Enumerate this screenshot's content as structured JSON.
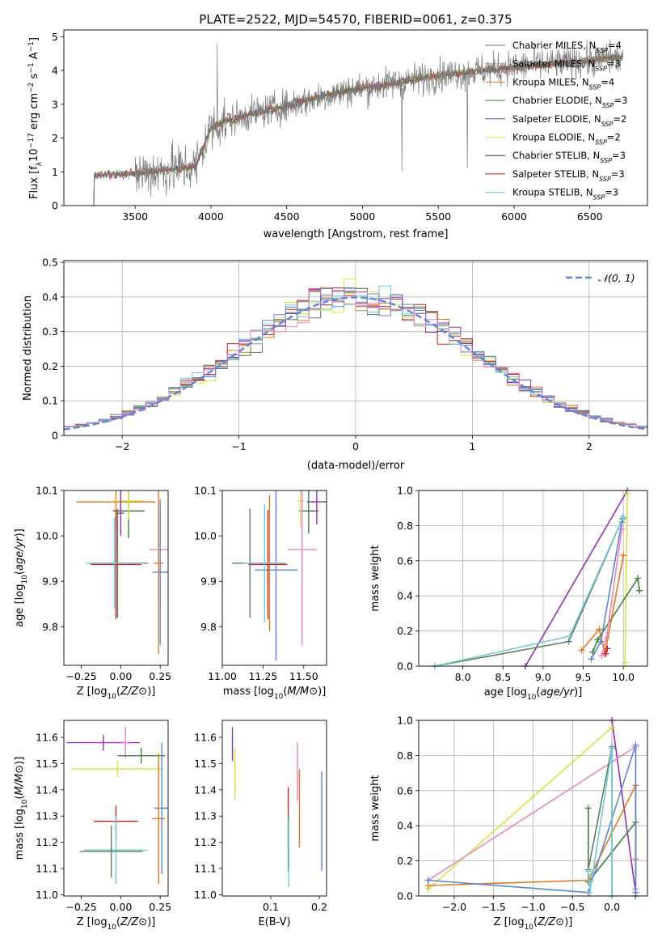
{
  "title": "PLATE=2522, MJD=54570, FIBERID=0061, z=0.375",
  "colors": {
    "Chabrier MILES": "#5f7f5f",
    "Salpeter MILES": "#a0a0a0",
    "Kroupa MILES": "#e07820",
    "Chabrier ELODIE": "#3e7f3e",
    "Salpeter ELODIE": "#9030b0",
    "Kroupa ELODIE": "#d8e040",
    "Chabrier STELIB": "#303030",
    "Salpeter STELIB": "#c02020",
    "Kroupa STELIB": "#70c8d8",
    "extra_blue": "#5b86d6",
    "extra_pink": "#e884c0",
    "normal": "#5b86d6"
  },
  "chart_data": [
    {
      "id": "spectrum",
      "type": "line",
      "title": "PLATE=2522, MJD=54570, FIBERID=0061, z=0.375",
      "xlabel": "wavelength [Angstrom, rest frame]",
      "ylabel_parts": [
        "Flux [f",
        "λ",
        "10",
        "−17",
        " erg cm",
        "−2",
        " s",
        "−1",
        " A",
        "−1",
        "]"
      ],
      "xlim": [
        3030,
        6880
      ],
      "ylim": [
        0,
        5.2
      ],
      "xticks": [
        3500,
        4000,
        4500,
        5000,
        5500,
        6000,
        6500
      ],
      "yticks": [
        0,
        1,
        2,
        3,
        4,
        5
      ],
      "x_range": [
        3220,
        6720
      ],
      "continuum": {
        "x": [
          3220,
          3500,
          3900,
          4000,
          4100,
          4300,
          4500,
          4700,
          4900,
          5100,
          5300,
          5500,
          5700,
          5900,
          6100,
          6300,
          6500,
          6720
        ],
        "y": [
          0.9,
          0.95,
          1.15,
          2.3,
          2.5,
          2.75,
          2.95,
          3.2,
          3.4,
          3.55,
          3.7,
          3.85,
          3.95,
          4.05,
          4.15,
          4.2,
          4.3,
          4.4
        ]
      },
      "legend": [
        {
          "name": "Chabrier MILES, N",
          "sub": "SSP",
          "tail": "=4"
        },
        {
          "name": "Salpeter MILES, N",
          "sub": "SSP",
          "tail": "=3"
        },
        {
          "name": "Kroupa MILES, N",
          "sub": "SSP",
          "tail": "=4"
        },
        {
          "name": "Chabrier ELODIE, N",
          "sub": "SSP",
          "tail": "=3"
        },
        {
          "name": "Salpeter ELODIE, N",
          "sub": "SSP",
          "tail": "=2"
        },
        {
          "name": "Kroupa ELODIE, N",
          "sub": "SSP",
          "tail": "=2"
        },
        {
          "name": "Chabrier STELIB, N",
          "sub": "SSP",
          "tail": "=3"
        },
        {
          "name": "Salpeter STELIB, N",
          "sub": "SSP",
          "tail": "=3"
        },
        {
          "name": "Kroupa STELIB, N",
          "sub": "SSP",
          "tail": "=3"
        }
      ],
      "legend_colors": [
        "#5f7f5f",
        "#a0a0a0",
        "#e07820",
        "#3e7f3e",
        "#9030b0",
        "#d8e040",
        "#303030",
        "#c02020",
        "#70c8d8"
      ],
      "legend_placement": "right",
      "grid": false
    },
    {
      "id": "residuals",
      "type": "line",
      "xlabel": "(data-model)/error",
      "ylabel": "Normed distribution",
      "xlim": [
        -2.5,
        2.5
      ],
      "ylim": [
        0,
        0.505
      ],
      "xticks": [
        -2,
        -1,
        0,
        1,
        2
      ],
      "yticks": [
        0.0,
        0.1,
        0.2,
        0.3,
        0.4,
        0.5
      ],
      "legend": [
        "𝒩(0, 1)"
      ],
      "legend_placement": "top-right",
      "grid": true,
      "bin_width": 0.1,
      "series_colors": [
        "#5f7f5f",
        "#e07820",
        "#3e7f3e",
        "#9030b0",
        "#d8e040",
        "#c02020",
        "#70c8d8",
        "#5b86d6",
        "#e884c0"
      ]
    },
    {
      "id": "age_vs_Z",
      "type": "scatter",
      "xlabel": "Z [log10(Z/Z⊙)]",
      "ylabel": "age [log10(age/yr)]",
      "xlim": [
        -0.36,
        0.3
      ],
      "ylim": [
        9.715,
        10.1
      ],
      "xticks": [
        "-0.25",
        "0.00",
        "0.25"
      ],
      "yticks": [
        "9.8",
        "9.9",
        "10.0",
        "10.1"
      ],
      "points": [
        {
          "x": 0.05,
          "y": 10.055,
          "xerr": 0.1,
          "yerr": 0.06,
          "c": "#3e7f3e"
        },
        {
          "x": -0.03,
          "y": 10.075,
          "xerr": 0.25,
          "yerr": 0.06,
          "c": "#e07820"
        },
        {
          "x": 0.05,
          "y": 10.077,
          "xerr": 0.1,
          "yerr": 0.04,
          "c": "#d8e040"
        },
        {
          "x": 0.0,
          "y": 10.05,
          "xerr": 0.02,
          "yerr": 0.05,
          "c": "#9030b0"
        },
        {
          "x": 0.24,
          "y": 9.97,
          "xerr": 0.06,
          "yerr": 0.12,
          "c": "#e884c0"
        },
        {
          "x": 0.25,
          "y": 9.92,
          "xerr": 0.05,
          "yerr": 0.16,
          "c": "#5b86d6"
        },
        {
          "x": 0.24,
          "y": 9.94,
          "xerr": 0.03,
          "yerr": 0.2,
          "c": "#e07820"
        },
        {
          "x": -0.02,
          "y": 9.94,
          "xerr": 0.19,
          "yerr": 0.12,
          "c": "#5f7f5f"
        },
        {
          "x": -0.03,
          "y": 9.937,
          "xerr": 0.16,
          "yerr": 0.12,
          "c": "#c02020"
        },
        {
          "x": -0.04,
          "y": 9.94,
          "xerr": 0.18,
          "yerr": 0.1,
          "c": "#70c8d8"
        }
      ]
    },
    {
      "id": "age_vs_mass",
      "type": "scatter",
      "xlabel": "mass [log10(M/M⊙)]",
      "ylabel": "",
      "xlim": [
        11.0,
        11.64
      ],
      "ylim": [
        9.715,
        10.1
      ],
      "xticks": [
        "11.00",
        "11.25",
        "11.50"
      ],
      "yticks": [
        "9.8",
        "9.9",
        "10.0",
        "10.1"
      ],
      "points": [
        {
          "x": 11.53,
          "y": 10.055,
          "xerr": 0.06,
          "yerr": 0.05,
          "c": "#3e7f3e"
        },
        {
          "x": 11.48,
          "y": 10.077,
          "xerr": 0.02,
          "yerr": 0.06,
          "c": "#d8e040"
        },
        {
          "x": 11.58,
          "y": 10.075,
          "xerr": 0.06,
          "yerr": 0.05,
          "c": "#9030b0"
        },
        {
          "x": 11.49,
          "y": 9.97,
          "xerr": 0.09,
          "yerr": 0.21,
          "c": "#e884c0"
        },
        {
          "x": 11.33,
          "y": 9.925,
          "xerr": 0.13,
          "yerr": 0.2,
          "c": "#5b86d6"
        },
        {
          "x": 11.29,
          "y": 9.94,
          "xerr": 0.09,
          "yerr": 0.15,
          "c": "#e07820"
        },
        {
          "x": 11.17,
          "y": 9.94,
          "xerr": 0.11,
          "yerr": 0.12,
          "c": "#5f7f5f"
        },
        {
          "x": 11.28,
          "y": 9.937,
          "xerr": 0.12,
          "yerr": 0.12,
          "c": "#c02020"
        },
        {
          "x": 11.26,
          "y": 9.94,
          "xerr": 0.13,
          "yerr": 0.13,
          "c": "#70c8d8"
        }
      ]
    },
    {
      "id": "weight_vs_age",
      "type": "line",
      "xlabel": "age [log10(age/yr)]",
      "ylabel": "mass weight",
      "xlim": [
        7.45,
        10.3
      ],
      "ylim": [
        0,
        1
      ],
      "xticks": [
        "8.0",
        "8.5",
        "9.0",
        "9.5",
        "10.0"
      ],
      "yticks": [
        "0.0",
        "0.2",
        "0.4",
        "0.6",
        "0.8",
        "1.0"
      ],
      "grid": true,
      "series": [
        {
          "c": "#9030b0",
          "x": [
            8.78,
            10.05
          ],
          "y": [
            0.0,
            1.0
          ]
        },
        {
          "c": "#d8e040",
          "x": [
            10.02,
            10.05
          ],
          "y": [
            0.02,
            0.98
          ]
        },
        {
          "c": "#3e7f3e",
          "x": [
            9.62,
            9.68,
            10.18,
            10.2
          ],
          "y": [
            0.08,
            0.15,
            0.5,
            0.43
          ]
        },
        {
          "c": "#e07820",
          "x": [
            9.48,
            9.7,
            9.77,
            10.0
          ],
          "y": [
            0.09,
            0.21,
            0.07,
            0.63
          ]
        },
        {
          "c": "#5b86d6",
          "x": [
            9.6,
            9.72,
            9.98
          ],
          "y": [
            0.04,
            0.14,
            0.82
          ]
        },
        {
          "c": "#e884c0",
          "x": [
            9.73,
            9.79,
            9.98
          ],
          "y": [
            0.06,
            0.16,
            0.78
          ]
        },
        {
          "c": "#5f7f5f",
          "x": [
            7.65,
            9.32,
            9.99
          ],
          "y": [
            0.0,
            0.14,
            0.84
          ]
        },
        {
          "c": "#c02020",
          "x": [
            9.78,
            9.8
          ],
          "y": [
            0.07,
            0.1
          ]
        },
        {
          "c": "#70c8d8",
          "x": [
            7.65,
            9.33,
            10.0
          ],
          "y": [
            0.0,
            0.17,
            0.85
          ]
        }
      ]
    },
    {
      "id": "mass_vs_Z",
      "type": "scatter",
      "xlabel": "Z [log10(Z/Z⊙)]",
      "ylabel": "mass [log10(M/M⊙)]",
      "xlim": [
        -0.36,
        0.3
      ],
      "ylim": [
        10.995,
        11.665
      ],
      "xticks": [
        "-0.25",
        "0.00",
        "0.25"
      ],
      "yticks": [
        "11.0",
        "11.1",
        "11.2",
        "11.3",
        "11.4",
        "11.5",
        "11.6"
      ],
      "points": [
        {
          "x": -0.11,
          "y": 11.58,
          "xerr": 0.23,
          "yerr": 0.03,
          "c": "#9030b0"
        },
        {
          "x": 0.03,
          "y": 11.58,
          "xerr": 0.02,
          "yerr": 0.06,
          "c": "#e884c0"
        },
        {
          "x": 0.13,
          "y": 11.53,
          "xerr": 0.15,
          "yerr": 0.03,
          "c": "#3e7f3e"
        },
        {
          "x": -0.02,
          "y": 11.48,
          "xerr": 0.29,
          "yerr": 0.03,
          "c": "#d8e040"
        },
        {
          "x": 0.26,
          "y": 11.33,
          "xerr": 0.05,
          "yerr": 0.25,
          "c": "#5b86d6"
        },
        {
          "x": 0.24,
          "y": 11.29,
          "xerr": 0.04,
          "yerr": 0.25,
          "c": "#e07820"
        },
        {
          "x": -0.03,
          "y": 11.28,
          "xerr": 0.14,
          "yerr": 0.06,
          "c": "#c02020"
        },
        {
          "x": -0.03,
          "y": 11.17,
          "xerr": 0.2,
          "yerr": 0.13,
          "c": "#70c8d8"
        },
        {
          "x": -0.06,
          "y": 11.165,
          "xerr": 0.2,
          "yerr": 0.1,
          "c": "#5f7f5f"
        }
      ]
    },
    {
      "id": "mass_vs_ebv",
      "type": "scatter",
      "xlabel": "E(B-V)",
      "ylabel": "",
      "xlim": [
        0.0,
        0.215
      ],
      "ylim": [
        10.995,
        11.665
      ],
      "xticks": [
        "0.1",
        "0.2"
      ],
      "yticks": [
        "11.0",
        "11.1",
        "11.2",
        "11.3",
        "11.4",
        "11.5",
        "11.6"
      ],
      "points": [
        {
          "x": 0.021,
          "y": 11.575,
          "yerr": 0.065,
          "c": "#9030b0"
        },
        {
          "x": 0.026,
          "y": 11.46,
          "yerr": 0.1,
          "c": "#d8e040"
        },
        {
          "x": 0.136,
          "y": 11.29,
          "yerr": 0.12,
          "c": "#c02020"
        },
        {
          "x": 0.136,
          "y": 11.2,
          "yerr": 0.11,
          "c": "#5f7f5f"
        },
        {
          "x": 0.137,
          "y": 11.16,
          "yerr": 0.13,
          "c": "#70c8d8"
        },
        {
          "x": 0.155,
          "y": 11.47,
          "yerr": 0.11,
          "c": "#e884c0"
        },
        {
          "x": 0.159,
          "y": 11.33,
          "yerr": 0.15,
          "c": "#e07820"
        },
        {
          "x": 0.205,
          "y": 11.28,
          "yerr": 0.19,
          "c": "#5b86d6"
        }
      ]
    },
    {
      "id": "weight_vs_Z",
      "type": "line",
      "xlabel": "Z [log10(Z/Z⊙)]",
      "ylabel": "mass weight",
      "xlim": [
        -2.45,
        0.45
      ],
      "ylim": [
        0,
        1
      ],
      "xticks": [
        "-2.0",
        "-1.5",
        "-1.0",
        "-0.5",
        "0.0"
      ],
      "yticks": [
        "0.0",
        "0.2",
        "0.4",
        "0.6",
        "0.8",
        "1.0"
      ],
      "grid": true,
      "series": [
        {
          "c": "#9030b0",
          "x": [
            0.0,
            0.3
          ],
          "y": [
            1.0,
            0.02
          ]
        },
        {
          "c": "#d8e040",
          "x": [
            -2.33,
            0.0
          ],
          "y": [
            0.04,
            0.96
          ]
        },
        {
          "c": "#e884c0",
          "x": [
            -2.33,
            0.3,
            0.3
          ],
          "y": [
            0.09,
            0.85,
            0.04
          ]
        },
        {
          "c": "#3e7f3e",
          "x": [
            -0.3,
            -0.3,
            0.3,
            0.3
          ],
          "y": [
            0.5,
            0.08,
            0.42,
            0.0
          ]
        },
        {
          "c": "#e07820",
          "x": [
            -2.33,
            -0.3,
            0.3,
            0.3
          ],
          "y": [
            0.06,
            0.09,
            0.63,
            0.21
          ]
        },
        {
          "c": "#5b86d6",
          "x": [
            -2.33,
            -0.3,
            0.3,
            0.3
          ],
          "y": [
            0.09,
            0.02,
            0.86,
            0.02
          ]
        },
        {
          "c": "#5f7f5f",
          "x": [
            -0.3,
            0.0,
            0.0
          ],
          "y": [
            0.15,
            0.85,
            0.0
          ]
        },
        {
          "c": "#70c8d8",
          "x": [
            -0.3,
            -0.28,
            0.0,
            0.0
          ],
          "y": [
            0.14,
            0.02,
            0.84,
            0.0
          ]
        }
      ]
    }
  ]
}
